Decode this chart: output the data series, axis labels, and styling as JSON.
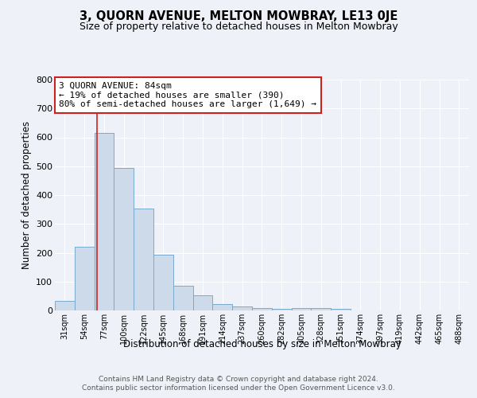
{
  "title": "3, QUORN AVENUE, MELTON MOWBRAY, LE13 0JE",
  "subtitle": "Size of property relative to detached houses in Melton Mowbray",
  "xlabel": "Distribution of detached houses by size in Melton Mowbray",
  "ylabel": "Number of detached properties",
  "bar_labels": [
    "31sqm",
    "54sqm",
    "77sqm",
    "100sqm",
    "122sqm",
    "145sqm",
    "168sqm",
    "191sqm",
    "214sqm",
    "237sqm",
    "260sqm",
    "282sqm",
    "305sqm",
    "328sqm",
    "351sqm",
    "374sqm",
    "397sqm",
    "419sqm",
    "442sqm",
    "465sqm",
    "488sqm"
  ],
  "bar_values": [
    32,
    220,
    615,
    495,
    353,
    192,
    85,
    53,
    22,
    15,
    9,
    6,
    8,
    7,
    5,
    0,
    0,
    0,
    0,
    0,
    0
  ],
  "bar_color": "#ccdaea",
  "bar_edge_color": "#7aaacf",
  "vline_color": "#cc2222",
  "vline_x": 2.0,
  "annotation_text": "3 QUORN AVENUE: 84sqm\n← 19% of detached houses are smaller (390)\n80% of semi-detached houses are larger (1,649) →",
  "annotation_box_color": "white",
  "annotation_box_edge_color": "#cc2222",
  "ylim": [
    0,
    800
  ],
  "yticks": [
    0,
    100,
    200,
    300,
    400,
    500,
    600,
    700,
    800
  ],
  "background_color": "#eef2f8",
  "plot_background": "#eef2f8",
  "title_fontsize": 10.5,
  "subtitle_fontsize": 9,
  "footer_line1": "Contains HM Land Registry data © Crown copyright and database right 2024.",
  "footer_line2": "Contains public sector information licensed under the Open Government Licence v3.0."
}
